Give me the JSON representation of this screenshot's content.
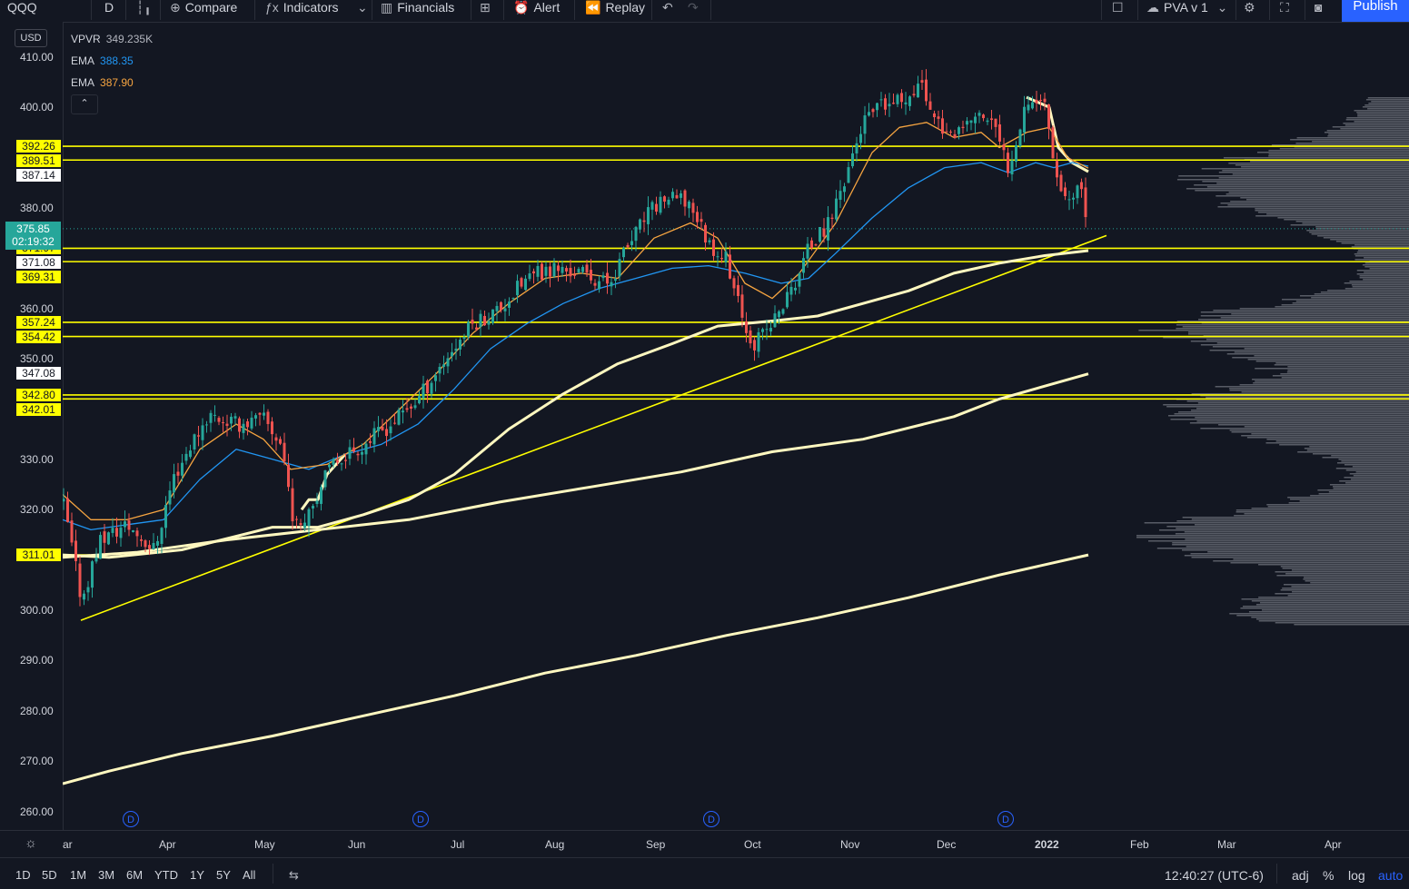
{
  "toolbar": {
    "symbol": "QQQ",
    "interval": "D",
    "compare_label": "Compare",
    "indicators_label": "Indicators",
    "financials_label": "Financials",
    "alert_label": "Alert",
    "replay_label": "Replay",
    "layout_name": "PVA v 1",
    "publish_label": "Publish"
  },
  "legend": {
    "vpvr_label": "VPVR",
    "vpvr_value": "349.235K",
    "ema1_label": "EMA",
    "ema1_value": "388.35",
    "ema1_color": "#2196f3",
    "ema2_label": "EMA",
    "ema2_value": "387.90",
    "ema2_color": "#f7a541"
  },
  "currency": "USD",
  "price_axis": {
    "ticks": [
      "410.00",
      "400.00",
      "380.00",
      "360.00",
      "350.00",
      "330.00",
      "320.00",
      "300.00",
      "290.00",
      "280.00",
      "270.00",
      "260.00"
    ],
    "level_labels": [
      "392.26",
      "389.51",
      "387.14",
      "371.97",
      "371.08",
      "369.31",
      "357.24",
      "354.42",
      "347.08",
      "342.80",
      "342.01",
      "311.01"
    ],
    "last_price": "375.85",
    "countdown": "02:19:32"
  },
  "time_axis": [
    "ar",
    "Apr",
    "May",
    "Jun",
    "Jul",
    "Aug",
    "Sep",
    "Oct",
    "Nov",
    "Dec",
    "2022",
    "Feb",
    "Mar",
    "Apr"
  ],
  "dividend_marker": "D",
  "bottom_bar": {
    "ranges": [
      "1D",
      "5D",
      "1M",
      "3M",
      "6M",
      "YTD",
      "1Y",
      "5Y",
      "All"
    ],
    "clock": "12:40:27 (UTC-6)",
    "options": [
      "adj",
      "%",
      "log",
      "auto"
    ],
    "active_option": "auto"
  },
  "colors": {
    "background": "#131722",
    "up": "#26a69a",
    "down": "#ef5350",
    "level_line": "#ffff00",
    "sma": "#fff8c0",
    "accent": "#2962ff"
  }
}
